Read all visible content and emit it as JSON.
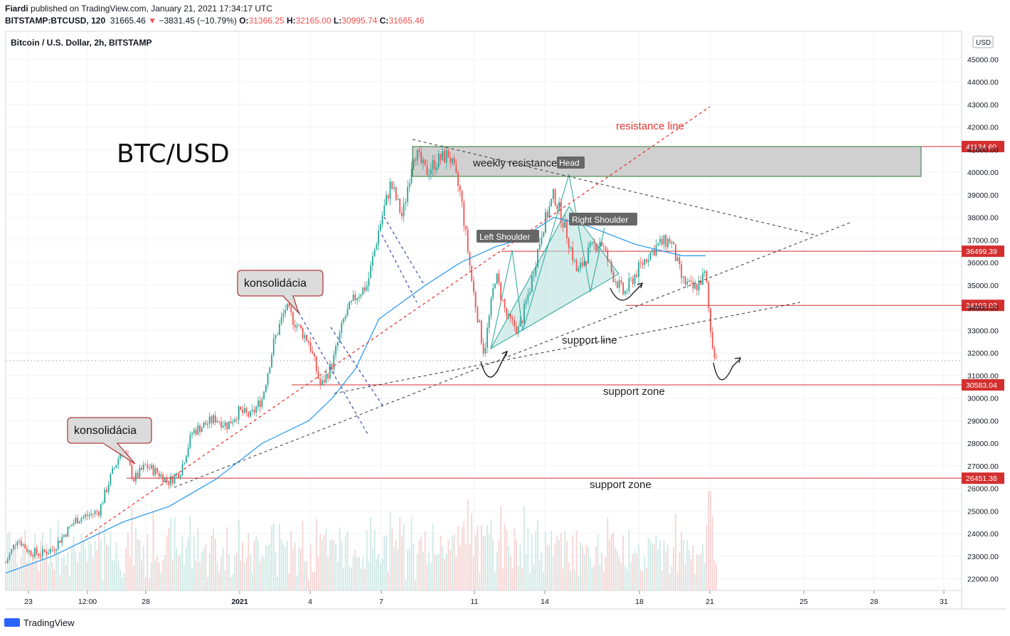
{
  "header": {
    "author": "Fiardi",
    "published_text": "published on TradingView.com, January 21, 2021 17:34:17 UTC",
    "symbol": "BITSTAMP:BTCUSD, 120",
    "last": "31665.46",
    "change": "−3831.45 (−10.79%)",
    "o_label": "O:",
    "o_val": "31366.25",
    "h_label": "H:",
    "h_val": "32165.00",
    "l_label": "L:",
    "l_val": "30995.74",
    "c_label": "C:",
    "c_val": "31665.46"
  },
  "footer": {
    "brand": "TradingView"
  },
  "chart_data": {
    "type": "candlestick",
    "title": "BTC/USD",
    "instrument_label": "Bitcoin / U.S. Dollar, 2h, BITSTAMP",
    "currency": "USD",
    "x_ticks": [
      "23",
      "12:00",
      "28",
      "2021",
      "4",
      "7",
      "11",
      "14",
      "18",
      "21",
      "25",
      "28",
      "31"
    ],
    "y_ticks": [
      22000,
      23000,
      24000,
      25000,
      26000,
      27000,
      28000,
      29000,
      30000,
      31000,
      32000,
      33000,
      34000,
      35000,
      36000,
      37000,
      38000,
      39000,
      40000,
      41000,
      42000,
      43000,
      44000,
      45000
    ],
    "y_tick_labels": [
      "22000.00",
      "23000.00",
      "24000.00",
      "25000.00",
      "26000.00",
      "27000.00",
      "28000.00",
      "29000.00",
      "30000.00",
      "31000.00",
      "32000.00",
      "33000.00",
      "34000.00",
      "35000.00",
      "36000.00",
      "37000.00",
      "38000.00",
      "39000.00",
      "40000.00",
      "41000.00",
      "42000.00",
      "43000.00",
      "44000.00",
      "45000.00"
    ],
    "ylim": [
      21500,
      46000
    ],
    "price_path": [
      [
        "Dec 22",
        22700
      ],
      [
        "Dec 22 12:00",
        23800
      ],
      [
        "Dec 23",
        23200
      ],
      [
        "Dec 23 12:00",
        23100
      ],
      [
        "Dec 24",
        23300
      ],
      [
        "Dec 25",
        24600
      ],
      [
        "Dec 26",
        25000
      ],
      [
        "Dec 26 12:00",
        26500
      ],
      [
        "Dec 27",
        27800
      ],
      [
        "Dec 27 12:00",
        26400
      ],
      [
        "Dec 28",
        27000
      ],
      [
        "Dec 28 12:00",
        26700
      ],
      [
        "Dec 29",
        26300
      ],
      [
        "Dec 29 12:00",
        26800
      ],
      [
        "Dec 30",
        28500
      ],
      [
        "Dec 31",
        29100
      ],
      [
        "Dec 31 12:00",
        28800
      ],
      [
        "Jan 1",
        29400
      ],
      [
        "Jan 1 12:00",
        29200
      ],
      [
        "Jan 2",
        30000
      ],
      [
        "Jan 2 12:00",
        32500
      ],
      [
        "Jan 3",
        34000
      ],
      [
        "Jan 3 12:00",
        33200
      ],
      [
        "Jan 4",
        32500
      ],
      [
        "Jan 4 12:00",
        30500
      ],
      [
        "Jan 5",
        31500
      ],
      [
        "Jan 5 12:00",
        33500
      ],
      [
        "Jan 6",
        34500
      ],
      [
        "Jan 6 12:00",
        35000
      ],
      [
        "Jan 7",
        37500
      ],
      [
        "Jan 7 12:00",
        39500
      ],
      [
        "Jan 8",
        38000
      ],
      [
        "Jan 8 12:00",
        41000
      ],
      [
        "Jan 9",
        40000
      ],
      [
        "Jan 9 12:00",
        40500
      ],
      [
        "Jan 10",
        40800
      ],
      [
        "Jan 10 12:00",
        39000
      ],
      [
        "Jan 11",
        35000
      ],
      [
        "Jan 11 12:00",
        32000
      ],
      [
        "Jan 12",
        35500
      ],
      [
        "Jan 12 12:00",
        33500
      ],
      [
        "Jan 13",
        33000
      ],
      [
        "Jan 13 12:00",
        35000
      ],
      [
        "Jan 14",
        37500
      ],
      [
        "Jan 14 12:00",
        39000
      ],
      [
        "Jan 15",
        37500
      ],
      [
        "Jan 15 12:00",
        35500
      ],
      [
        "Jan 16",
        36500
      ],
      [
        "Jan 16 12:00",
        37000
      ],
      [
        "Jan 17",
        35500
      ],
      [
        "Jan 17 12:00",
        34600
      ],
      [
        "Jan 18",
        35500
      ],
      [
        "Jan 18 12:00",
        36300
      ],
      [
        "Jan 19",
        36800
      ],
      [
        "Jan 19 12:00",
        37000
      ],
      [
        "Jan 20",
        35200
      ],
      [
        "Jan 20 12:00",
        34800
      ],
      [
        "Jan 21",
        35500
      ],
      [
        "Jan 21 06:00",
        32500
      ],
      [
        "Jan 21 12:00",
        31665
      ]
    ],
    "moving_average": [
      [
        "Dec 22",
        22250
      ],
      [
        "Dec 24",
        23000
      ],
      [
        "Dec 27",
        24500
      ],
      [
        "Dec 29",
        25200
      ],
      [
        "Dec 31",
        26400
      ],
      [
        "Jan 2",
        28000
      ],
      [
        "Jan 4",
        29000
      ],
      [
        "Jan 5",
        30000
      ],
      [
        "Jan 6",
        31300
      ],
      [
        "Jan 7",
        33500
      ],
      [
        "Jan 9",
        35000
      ],
      [
        "Jan 10 12:00",
        36000
      ],
      [
        "Jan 12",
        36700
      ],
      [
        "Jan 13",
        37000
      ],
      [
        "Jan 14 12:00",
        38000
      ],
      [
        "Jan 16",
        37600
      ],
      [
        "Jan 18",
        36800
      ],
      [
        "Jan 20",
        36300
      ],
      [
        "Jan 21",
        36300
      ]
    ],
    "horizontal_levels": [
      {
        "value": 41134.6,
        "label": "41134.60"
      },
      {
        "value": 36499.39,
        "label": "36499.39"
      },
      {
        "value": 34103.02,
        "label": "34103.02"
      },
      {
        "value": 30583.04,
        "label": "30583.04"
      },
      {
        "value": 26451.38,
        "label": "26451.38"
      }
    ],
    "annotations": {
      "weekly_resistance": "weekly resistance",
      "resistance_line": "resistance line",
      "support_line": "support line",
      "support_zone_upper": "support zone",
      "support_zone_lower": "support zone",
      "head": "Head",
      "left_shoulder": "Left Shoulder",
      "right_shoulder": "Right Shoulder",
      "consolidation_1": "konsolidácia",
      "consolidation_2": "konsolidácia"
    },
    "colors": {
      "up": "#26a69a",
      "down": "#ef5350",
      "ma": "#2196f3",
      "level": "#d32f2f",
      "resistance_box": "#c8c8c8",
      "triangle": "#b2dfdb"
    },
    "grid": true,
    "scale": "linear"
  }
}
